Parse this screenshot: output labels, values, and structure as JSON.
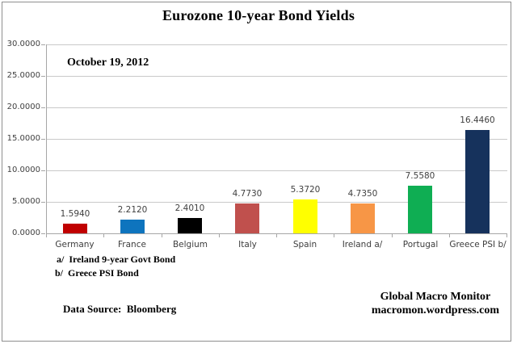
{
  "chart_data": {
    "type": "bar",
    "title": "Eurozone 10-year Bond Yields",
    "annotation": "October 19, 2012",
    "categories": [
      "Germany",
      "France",
      "Belgium",
      "Italy",
      "Spain",
      "Ireland a/",
      "Portugal",
      "Greece PSI b/"
    ],
    "values": [
      1.594,
      2.212,
      2.401,
      4.773,
      5.372,
      4.735,
      7.558,
      16.446
    ],
    "value_labels": [
      "1.5940",
      "2.2120",
      "2.4010",
      "4.7730",
      "5.3720",
      "4.7350",
      "7.5580",
      "16.4460"
    ],
    "bar_colors": [
      "#c00000",
      "#0e74be",
      "#000000",
      "#c0504d",
      "#ffff00",
      "#f79646",
      "#0fae53",
      "#16325c"
    ],
    "xlabel": "",
    "ylabel": "",
    "ylim": [
      0,
      30
    ],
    "ytick_step": 5,
    "ytick_labels_top_to_bottom": [
      "30.0000",
      "25.0000",
      "20.0000",
      "15.0000",
      "10.0000",
      "5.0000",
      "0.0000"
    ],
    "grid": true,
    "legend_position": "none",
    "grid_color": "#c9c9c9",
    "axis_color": "#a6a6a6",
    "label_color": "#404040"
  },
  "footnotes": {
    "a": "a/  Ireland 9-year Govt Bond",
    "b": "b/  Greece PSI Bond"
  },
  "source": "Data Source:  Bloomberg",
  "credit": {
    "line1": "Global Macro Monitor",
    "line2": "macromon.wordpress.com"
  }
}
